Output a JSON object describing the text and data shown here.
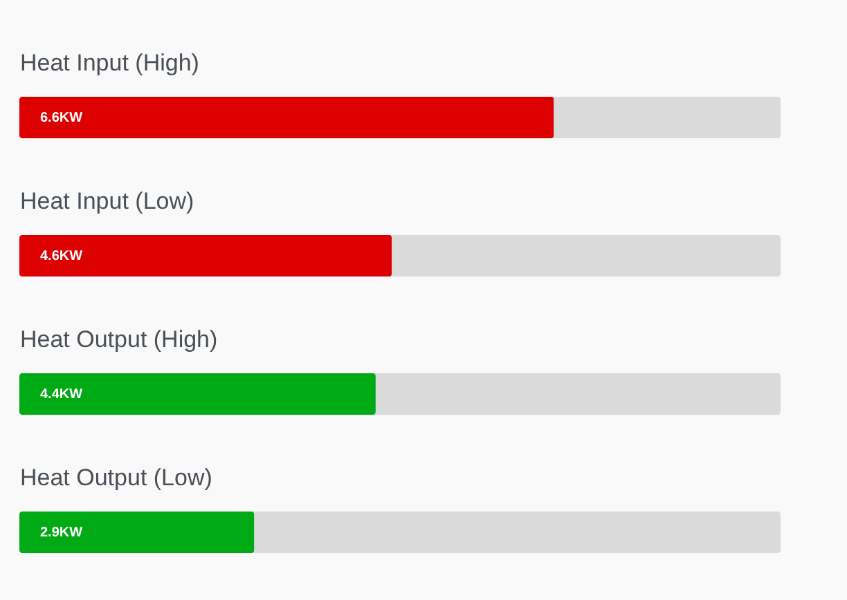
{
  "chart_data": {
    "type": "bar",
    "orientation": "horizontal",
    "categories": [
      "Heat Input (High)",
      "Heat Input (Low)",
      "Heat Output (High)",
      "Heat Output (Low)"
    ],
    "values": [
      6.6,
      4.6,
      4.4,
      2.9
    ],
    "colors": [
      "#dd0000",
      "#dd0000",
      "#00aa14",
      "#00aa14"
    ],
    "value_labels": [
      "6.6KW",
      "4.6KW",
      "4.4KW",
      "2.9KW"
    ],
    "xlim": [
      0,
      9.4
    ],
    "bands": [
      {
        "axis": "x",
        "from": 0,
        "to": 9.4,
        "color": "#dadada"
      }
    ],
    "tick_labels": "y"
  }
}
